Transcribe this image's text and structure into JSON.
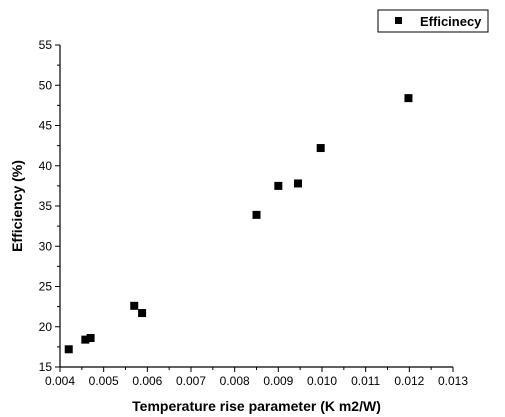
{
  "chart_data": {
    "type": "scatter",
    "title": "",
    "xlabel": "Temperature rise parameter (K m2/W)",
    "ylabel": "Efficiency (%)",
    "xlim": [
      0.004,
      0.013
    ],
    "ylim": [
      15,
      55
    ],
    "x_ticks": [
      "0.004",
      "0.005",
      "0.006",
      "0.007",
      "0.008",
      "0.009",
      "0.010",
      "0.011",
      "0.012",
      "0.013"
    ],
    "y_ticks": [
      "15",
      "20",
      "25",
      "30",
      "35",
      "40",
      "45",
      "50",
      "55"
    ],
    "grid": false,
    "legend_position": "top-right",
    "series": [
      {
        "name": "Efficinecy",
        "color": "#000000",
        "marker": "square",
        "x": [
          0.0042,
          0.00458,
          0.0047,
          0.0057,
          0.00588,
          0.0085,
          0.009,
          0.00945,
          0.00997,
          0.01198
        ],
        "y": [
          17.2,
          18.4,
          18.6,
          22.6,
          21.7,
          33.9,
          37.5,
          37.8,
          42.2,
          48.4
        ]
      }
    ]
  }
}
